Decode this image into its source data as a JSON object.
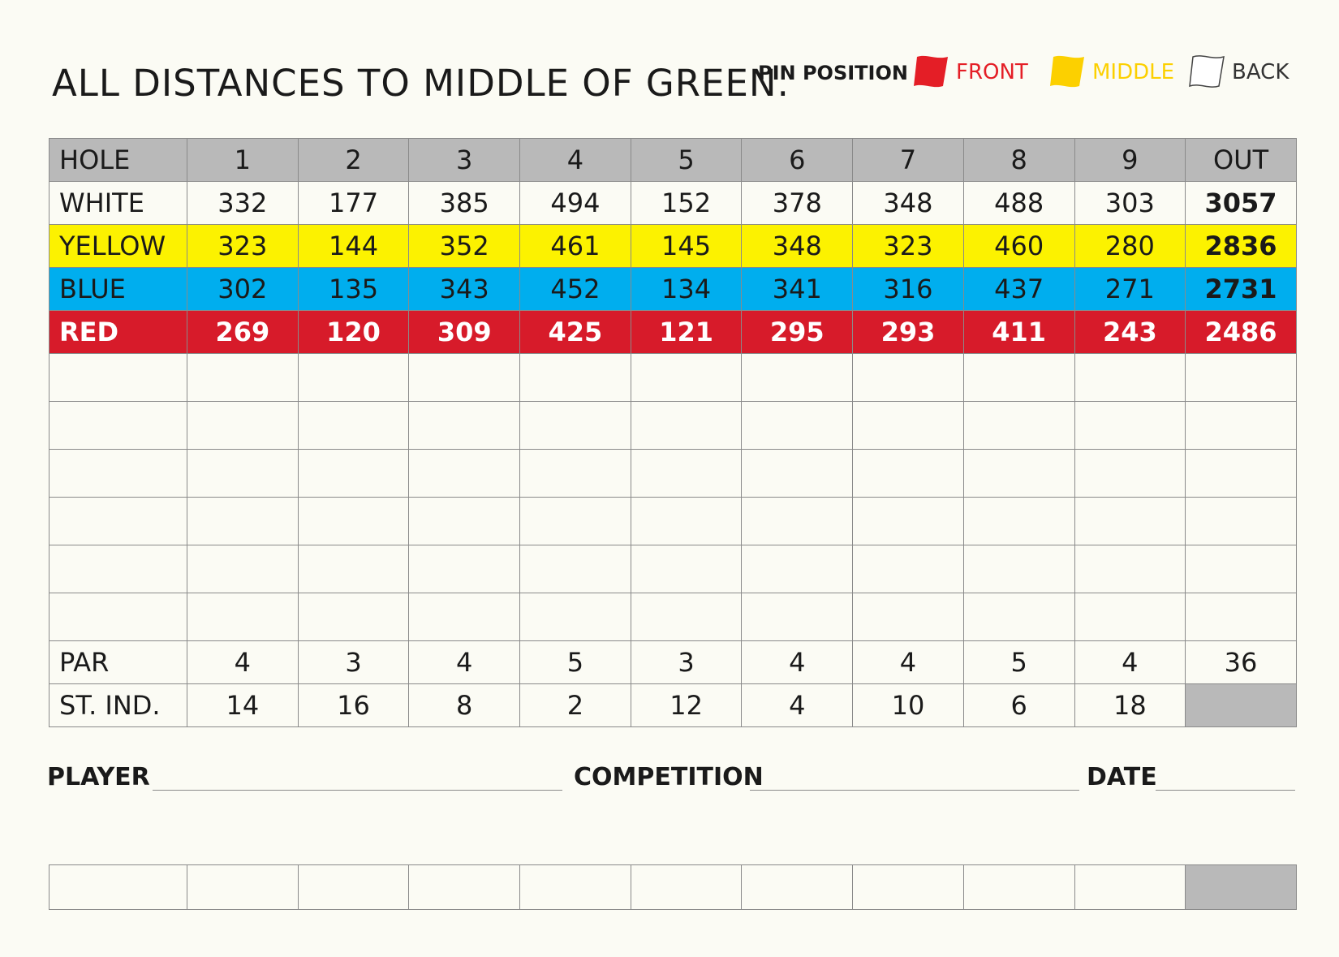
{
  "header": {
    "title": "ALL DISTANCES TO MIDDLE OF GREEN.",
    "pin_position_label": "PIN POSITION",
    "pins": [
      {
        "label": "FRONT",
        "color": "#e41e26"
      },
      {
        "label": "MIDDLE",
        "color": "#fcd000"
      },
      {
        "label": "BACK",
        "color": "#ffffff"
      }
    ]
  },
  "scorecard": {
    "hole_row": {
      "label": "HOLE",
      "cells": [
        "1",
        "2",
        "3",
        "4",
        "5",
        "6",
        "7",
        "8",
        "9"
      ],
      "total": "OUT"
    },
    "tees": [
      {
        "name": "WHITE",
        "color": "#fbfbf4",
        "cells": [
          "332",
          "177",
          "385",
          "494",
          "152",
          "378",
          "348",
          "488",
          "303"
        ],
        "total": "3057"
      },
      {
        "name": "YELLOW",
        "color": "#fcf200",
        "cells": [
          "323",
          "144",
          "352",
          "461",
          "145",
          "348",
          "323",
          "460",
          "280"
        ],
        "total": "2836"
      },
      {
        "name": "BLUE",
        "color": "#00aeee",
        "cells": [
          "302",
          "135",
          "343",
          "452",
          "134",
          "341",
          "316",
          "437",
          "271"
        ],
        "total": "2731"
      },
      {
        "name": "RED",
        "color": "#d71b2a",
        "cells": [
          "269",
          "120",
          "309",
          "425",
          "121",
          "295",
          "293",
          "411",
          "243"
        ],
        "total": "2486"
      }
    ],
    "par_row": {
      "label": "PAR",
      "cells": [
        "4",
        "3",
        "4",
        "5",
        "3",
        "4",
        "4",
        "5",
        "4"
      ],
      "total": "36"
    },
    "stroke_index_row": {
      "label": "ST. IND.",
      "cells": [
        "14",
        "16",
        "8",
        "2",
        "12",
        "4",
        "10",
        "6",
        "18"
      ],
      "total": ""
    }
  },
  "footer": {
    "player_label": "PLAYER",
    "competition_label": "COMPETITION",
    "date_label": "DATE"
  }
}
